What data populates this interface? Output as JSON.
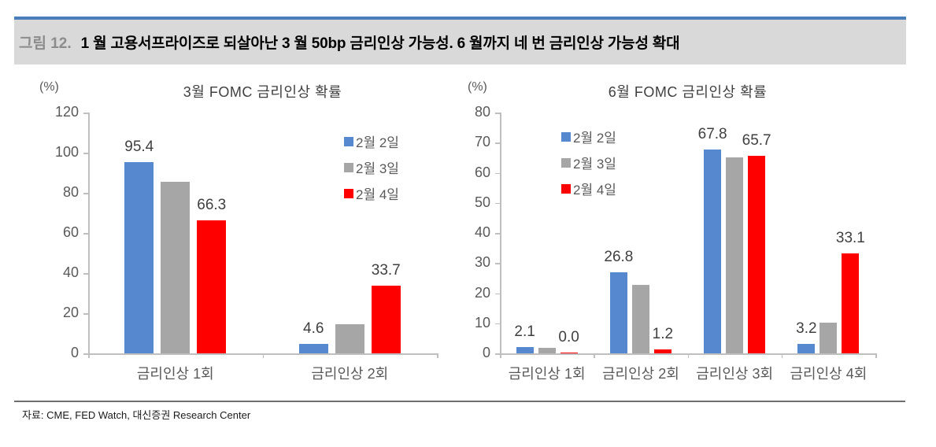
{
  "header": {
    "figure_label": "그림 12.",
    "title": "1 월 고용서프라이즈로 되살아난 3 월 50bp 금리인상 가능성. 6 월까지 네 번 금리인상 가능성 확대"
  },
  "footer": {
    "source": "자료: CME, FED Watch, 대신증권 Research Center"
  },
  "colors": {
    "series_blue": "#5588ce",
    "series_gray": "#a6a6a6",
    "series_red": "#ff0000",
    "header_accent": "#4a7ebb",
    "header_background": "#d9d9d9",
    "axis": "#bfbfbf"
  },
  "chart_data": [
    {
      "type": "bar",
      "title": "3월 FOMC 금리인상 확률",
      "unit": "(%)",
      "ylim": [
        0,
        120
      ],
      "yticks": [
        0,
        20,
        40,
        60,
        80,
        100,
        120
      ],
      "grid": false,
      "legend_position": "inside-top-right",
      "categories": [
        "금리인상 1회",
        "금리인상 2회"
      ],
      "series": [
        {
          "name": "2월 2일",
          "color_key": "series_blue",
          "values": [
            95.4,
            4.6
          ],
          "data_labels": [
            "95.4",
            "4.6"
          ]
        },
        {
          "name": "2월 3일",
          "color_key": "series_gray",
          "values": [
            85.5,
            14.5
          ],
          "data_labels": [
            "",
            ""
          ]
        },
        {
          "name": "2월 4일",
          "color_key": "series_red",
          "values": [
            66.3,
            33.7
          ],
          "data_labels": [
            "66.3",
            "33.7"
          ]
        }
      ]
    },
    {
      "type": "bar",
      "title": "6월 FOMC 금리인상 확률",
      "unit": "(%)",
      "ylim": [
        0,
        80
      ],
      "yticks": [
        0,
        10,
        20,
        30,
        40,
        50,
        60,
        70,
        80
      ],
      "grid": false,
      "legend_position": "inside-top-left",
      "categories": [
        "금리인상 1회",
        "금리인상 2회",
        "금리인상 3회",
        "금리인상 4회"
      ],
      "series": [
        {
          "name": "2월 2일",
          "color_key": "series_blue",
          "values": [
            2.1,
            26.8,
            67.8,
            3.2
          ],
          "data_labels": [
            "2.1",
            "26.8",
            "67.8",
            "3.2"
          ]
        },
        {
          "name": "2월 3일",
          "color_key": "series_gray",
          "values": [
            1.8,
            22.8,
            65.1,
            10.3
          ],
          "data_labels": [
            "",
            "",
            "",
            ""
          ]
        },
        {
          "name": "2월 4일",
          "color_key": "series_red",
          "values": [
            0.0,
            1.2,
            65.7,
            33.1
          ],
          "data_labels": [
            "0.0",
            "1.2",
            "65.7",
            "33.1"
          ]
        }
      ]
    }
  ]
}
